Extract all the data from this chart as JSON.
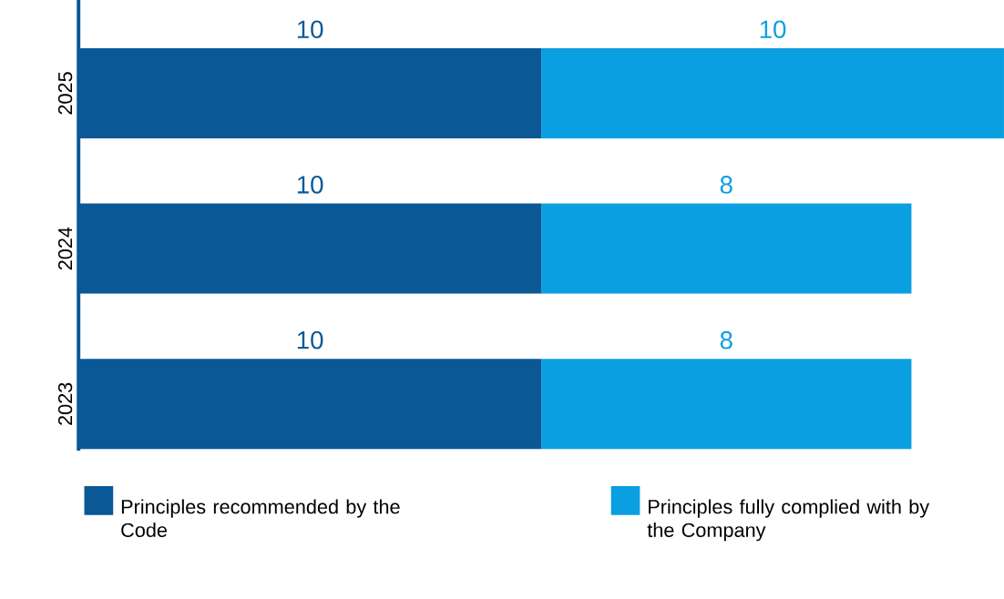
{
  "chart_data": {
    "type": "bar",
    "orientation": "horizontal",
    "stacked": true,
    "data_labels": true,
    "legend": "bottom",
    "categories": [
      "2025",
      "2024",
      "2023"
    ],
    "series": [
      {
        "name": "Principles recommended by the Code",
        "color": "#0b5896",
        "values": [
          10,
          10,
          10
        ]
      },
      {
        "name": "Principles fully complied with by the Company",
        "color": "#0a9fe0",
        "values": [
          10,
          8,
          8
        ]
      }
    ]
  }
}
